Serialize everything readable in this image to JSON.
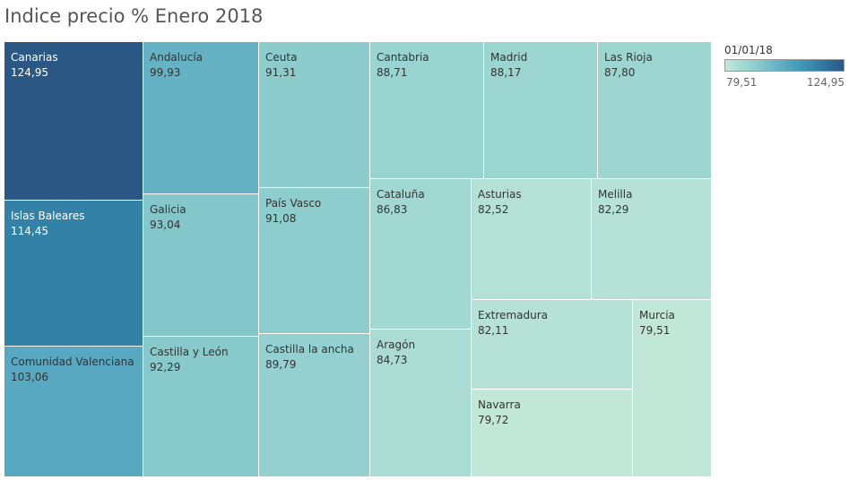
{
  "title": "Indice precio % Enero 2018",
  "legend": {
    "title": "01/01/18",
    "min_label": "79,51",
    "max_label": "124,95",
    "color_low": "#c1e7d8",
    "color_high": "#2a5783"
  },
  "chart_data": {
    "type": "treemap",
    "title": "Indice precio % Enero 2018",
    "color_range": [
      79.51,
      124.95
    ],
    "items": [
      {
        "name": "Canarias",
        "value": 124.95,
        "label": "124,95"
      },
      {
        "name": "Islas Baleares",
        "value": 114.45,
        "label": "114,45"
      },
      {
        "name": "Comunidad Valenciana",
        "value": 103.06,
        "label": "103,06"
      },
      {
        "name": "Andalucía",
        "value": 99.93,
        "label": "99,93"
      },
      {
        "name": "Galicia",
        "value": 93.04,
        "label": "93,04"
      },
      {
        "name": "Castilla y León",
        "value": 92.29,
        "label": "92,29"
      },
      {
        "name": "Ceuta",
        "value": 91.31,
        "label": "91,31"
      },
      {
        "name": "País Vasco",
        "value": 91.08,
        "label": "91,08"
      },
      {
        "name": "Castilla la ancha",
        "value": 89.79,
        "label": "89,79"
      },
      {
        "name": "Cantabria",
        "value": 88.71,
        "label": "88,71"
      },
      {
        "name": "Madrid",
        "value": 88.17,
        "label": "88,17"
      },
      {
        "name": "Las Rioja",
        "value": 87.8,
        "label": "87,80"
      },
      {
        "name": "Cataluña",
        "value": 86.83,
        "label": "86,83"
      },
      {
        "name": "Aragón",
        "value": 84.73,
        "label": "84,73"
      },
      {
        "name": "Asturias",
        "value": 82.52,
        "label": "82,52"
      },
      {
        "name": "Melilla",
        "value": 82.29,
        "label": "82,29"
      },
      {
        "name": "Extremadura",
        "value": 82.11,
        "label": "82,11"
      },
      {
        "name": "Navarra",
        "value": 79.72,
        "label": "79,72"
      },
      {
        "name": "Murcia",
        "value": 79.51,
        "label": "79,51"
      }
    ]
  }
}
